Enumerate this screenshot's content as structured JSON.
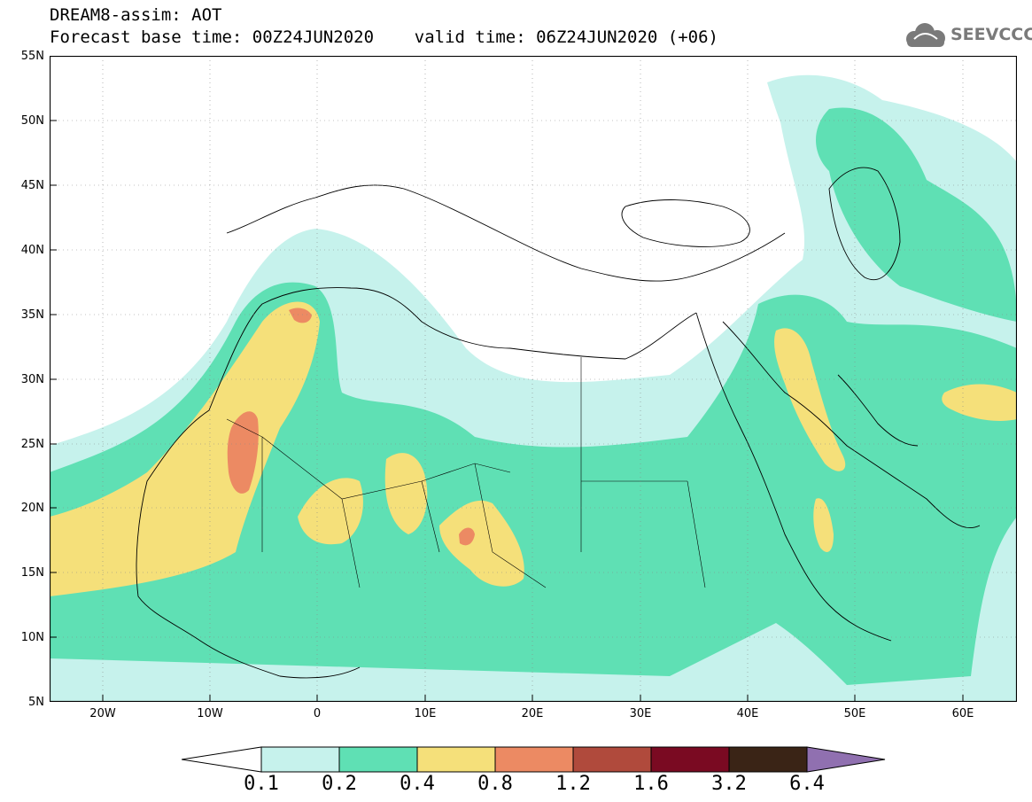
{
  "header": {
    "title_line1": "DREAM8-assim: AOT",
    "title_line2": "Forecast base time: 00Z24JUN2020    valid time: 06Z24JUN2020 (+06)",
    "logo_text": "SEEVCCC",
    "logo_icon": "cloud-icon"
  },
  "map": {
    "lat_labels": [
      "55N",
      "50N",
      "45N",
      "40N",
      "35N",
      "30N",
      "25N",
      "20N",
      "15N",
      "10N",
      "5N"
    ],
    "lon_labels": [
      "20W",
      "10W",
      "0",
      "10E",
      "20E",
      "30E",
      "40E",
      "50E",
      "60E"
    ],
    "lat_range": [
      5,
      55
    ],
    "lon_range": [
      -25,
      65
    ],
    "colors": {
      "c01": "#c6f2ec",
      "c02": "#5fe0b4",
      "c04": "#f5e07a",
      "c08": "#ec8a63",
      "c12": "#b04a3c",
      "c16": "#7a0a22",
      "c32": "#3a2416",
      "c64": "#9070b0"
    }
  },
  "colorbar": {
    "labels": [
      "0.1",
      "0.2",
      "0.4",
      "0.8",
      "1.2",
      "1.6",
      "3.2",
      "6.4"
    ],
    "colors": [
      "#c6f2ec",
      "#5fe0b4",
      "#f5e07a",
      "#ec8a63",
      "#b04a3c",
      "#7a0a22",
      "#3a2416"
    ],
    "under_color": "#ffffff",
    "over_color": "#9070b0"
  }
}
